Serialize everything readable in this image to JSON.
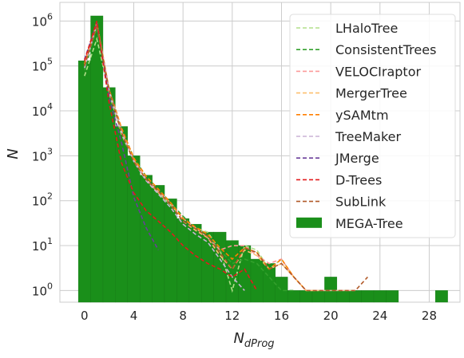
{
  "chart_data": {
    "type": "bar",
    "title": "",
    "xlabel": "N",
    "xlabel_sub": "dProg",
    "ylabel": "N",
    "yscale": "log",
    "xlim": [
      -2,
      30.5
    ],
    "ylim": [
      0.55,
      2600000
    ],
    "grid": true,
    "legend_position": "top-right",
    "xticks": [
      0,
      4,
      8,
      12,
      16,
      20,
      24,
      28
    ],
    "yticks": [
      {
        "value": 1,
        "exp": "0"
      },
      {
        "value": 10,
        "exp": "1"
      },
      {
        "value": 100,
        "exp": "2"
      },
      {
        "value": 1000,
        "exp": "3"
      },
      {
        "value": 10000,
        "exp": "4"
      },
      {
        "value": 100000,
        "exp": "5"
      },
      {
        "value": 1000000,
        "exp": "6"
      }
    ],
    "histogram": {
      "name": "MEGA-Tree",
      "color": "#1a8f1a",
      "bin_width": 1,
      "x": [
        0,
        1,
        2,
        3,
        4,
        5,
        6,
        7,
        8,
        9,
        10,
        11,
        12,
        13,
        14,
        15,
        16,
        17,
        18,
        19,
        20,
        21,
        22,
        23,
        24,
        25,
        26,
        27,
        28,
        29
      ],
      "values": [
        130000,
        1300000,
        33000,
        4500,
        1000,
        370,
        220,
        110,
        40,
        30,
        20,
        20,
        13,
        10,
        5,
        4,
        2,
        1,
        1,
        1,
        2,
        1,
        1,
        1,
        1,
        1,
        0,
        0,
        0,
        1
      ]
    },
    "series": [
      {
        "name": "LHaloTree",
        "color": "#b2df8a",
        "x": [
          0,
          1,
          2,
          3,
          4,
          5,
          6,
          7,
          8,
          9,
          10,
          11,
          12,
          13,
          14,
          15,
          16,
          17,
          18,
          19,
          20,
          21,
          22
        ],
        "values": [
          60000,
          400000,
          25000,
          3000,
          800,
          300,
          150,
          80,
          40,
          25,
          20,
          8,
          1,
          10,
          8,
          3,
          5,
          2,
          1,
          1,
          1,
          1,
          1
        ]
      },
      {
        "name": "ConsistentTrees",
        "color": "#33a02c",
        "x": [
          0,
          1,
          2,
          3,
          4,
          5,
          6,
          7,
          8,
          9,
          10,
          11,
          12,
          13,
          14,
          15,
          16,
          17
        ],
        "values": [
          80000,
          700000,
          30000,
          4000,
          900,
          350,
          180,
          90,
          45,
          25,
          18,
          8,
          4,
          5,
          4,
          2,
          1,
          1
        ]
      },
      {
        "name": "VELOCIraptor",
        "color": "#fb9a99",
        "x": [
          0,
          1,
          2,
          3,
          4,
          5,
          6,
          7,
          8,
          9,
          10,
          11,
          12,
          13,
          14,
          15,
          16,
          17,
          18,
          19,
          20,
          21,
          22
        ],
        "values": [
          110000,
          900000,
          30000,
          3500,
          800,
          300,
          160,
          90,
          40,
          25,
          15,
          8,
          10,
          10,
          6,
          4,
          5,
          2,
          1,
          1,
          1,
          1,
          1
        ]
      },
      {
        "name": "MergerTree",
        "color": "#fdbf6f",
        "x": [
          0,
          1,
          2,
          3,
          4,
          5,
          6,
          7,
          8,
          9,
          10,
          11,
          12,
          13,
          14,
          15,
          16,
          17,
          18,
          19
        ],
        "values": [
          100000,
          800000,
          28000,
          3500,
          800,
          300,
          150,
          80,
          35,
          22,
          15,
          6,
          3,
          8,
          6,
          3,
          4,
          2,
          1,
          1
        ]
      },
      {
        "name": "ySAMtm",
        "color": "#ff7f00",
        "x": [
          0,
          1,
          2,
          3,
          4,
          5,
          6,
          7,
          8,
          9,
          10,
          11,
          12,
          13,
          14,
          15,
          16,
          17,
          18
        ],
        "values": [
          110000,
          950000,
          30000,
          4200,
          900,
          350,
          180,
          90,
          40,
          26,
          18,
          9,
          5,
          9,
          7,
          3,
          5,
          2,
          1
        ]
      },
      {
        "name": "TreeMaker",
        "color": "#cab2d6",
        "x": [
          0,
          1,
          2,
          3,
          4,
          5,
          6,
          7,
          8,
          9,
          10,
          11,
          12,
          13
        ],
        "values": [
          90000,
          850000,
          28000,
          3500,
          750,
          280,
          140,
          70,
          30,
          18,
          12,
          5,
          2,
          1
        ]
      },
      {
        "name": "JMerge",
        "color": "#6a3d9a",
        "x": [
          0,
          1,
          2,
          3,
          4,
          5,
          6
        ],
        "values": [
          140000,
          900000,
          20000,
          2000,
          120,
          25,
          8
        ]
      },
      {
        "name": "D-Trees",
        "color": "#e31a1c",
        "x": [
          0,
          1,
          2,
          3,
          4,
          5,
          6,
          7,
          8,
          9,
          10,
          11,
          12,
          13,
          14
        ],
        "values": [
          130000,
          1000000,
          15000,
          700,
          150,
          60,
          35,
          20,
          10,
          6,
          4,
          3,
          2,
          3,
          1
        ]
      },
      {
        "name": "SubLink",
        "color": "#b15928",
        "x": [
          0,
          1,
          2,
          3,
          4,
          5,
          6,
          7,
          8,
          9,
          10,
          11,
          12,
          13,
          14,
          15,
          16,
          17,
          18,
          19,
          20,
          21,
          22,
          23
        ],
        "values": [
          100000,
          800000,
          28000,
          3300,
          750,
          300,
          160,
          80,
          35,
          24,
          16,
          7,
          3,
          9,
          7,
          3,
          4,
          2,
          1,
          1,
          1,
          1,
          1,
          2
        ]
      }
    ]
  }
}
